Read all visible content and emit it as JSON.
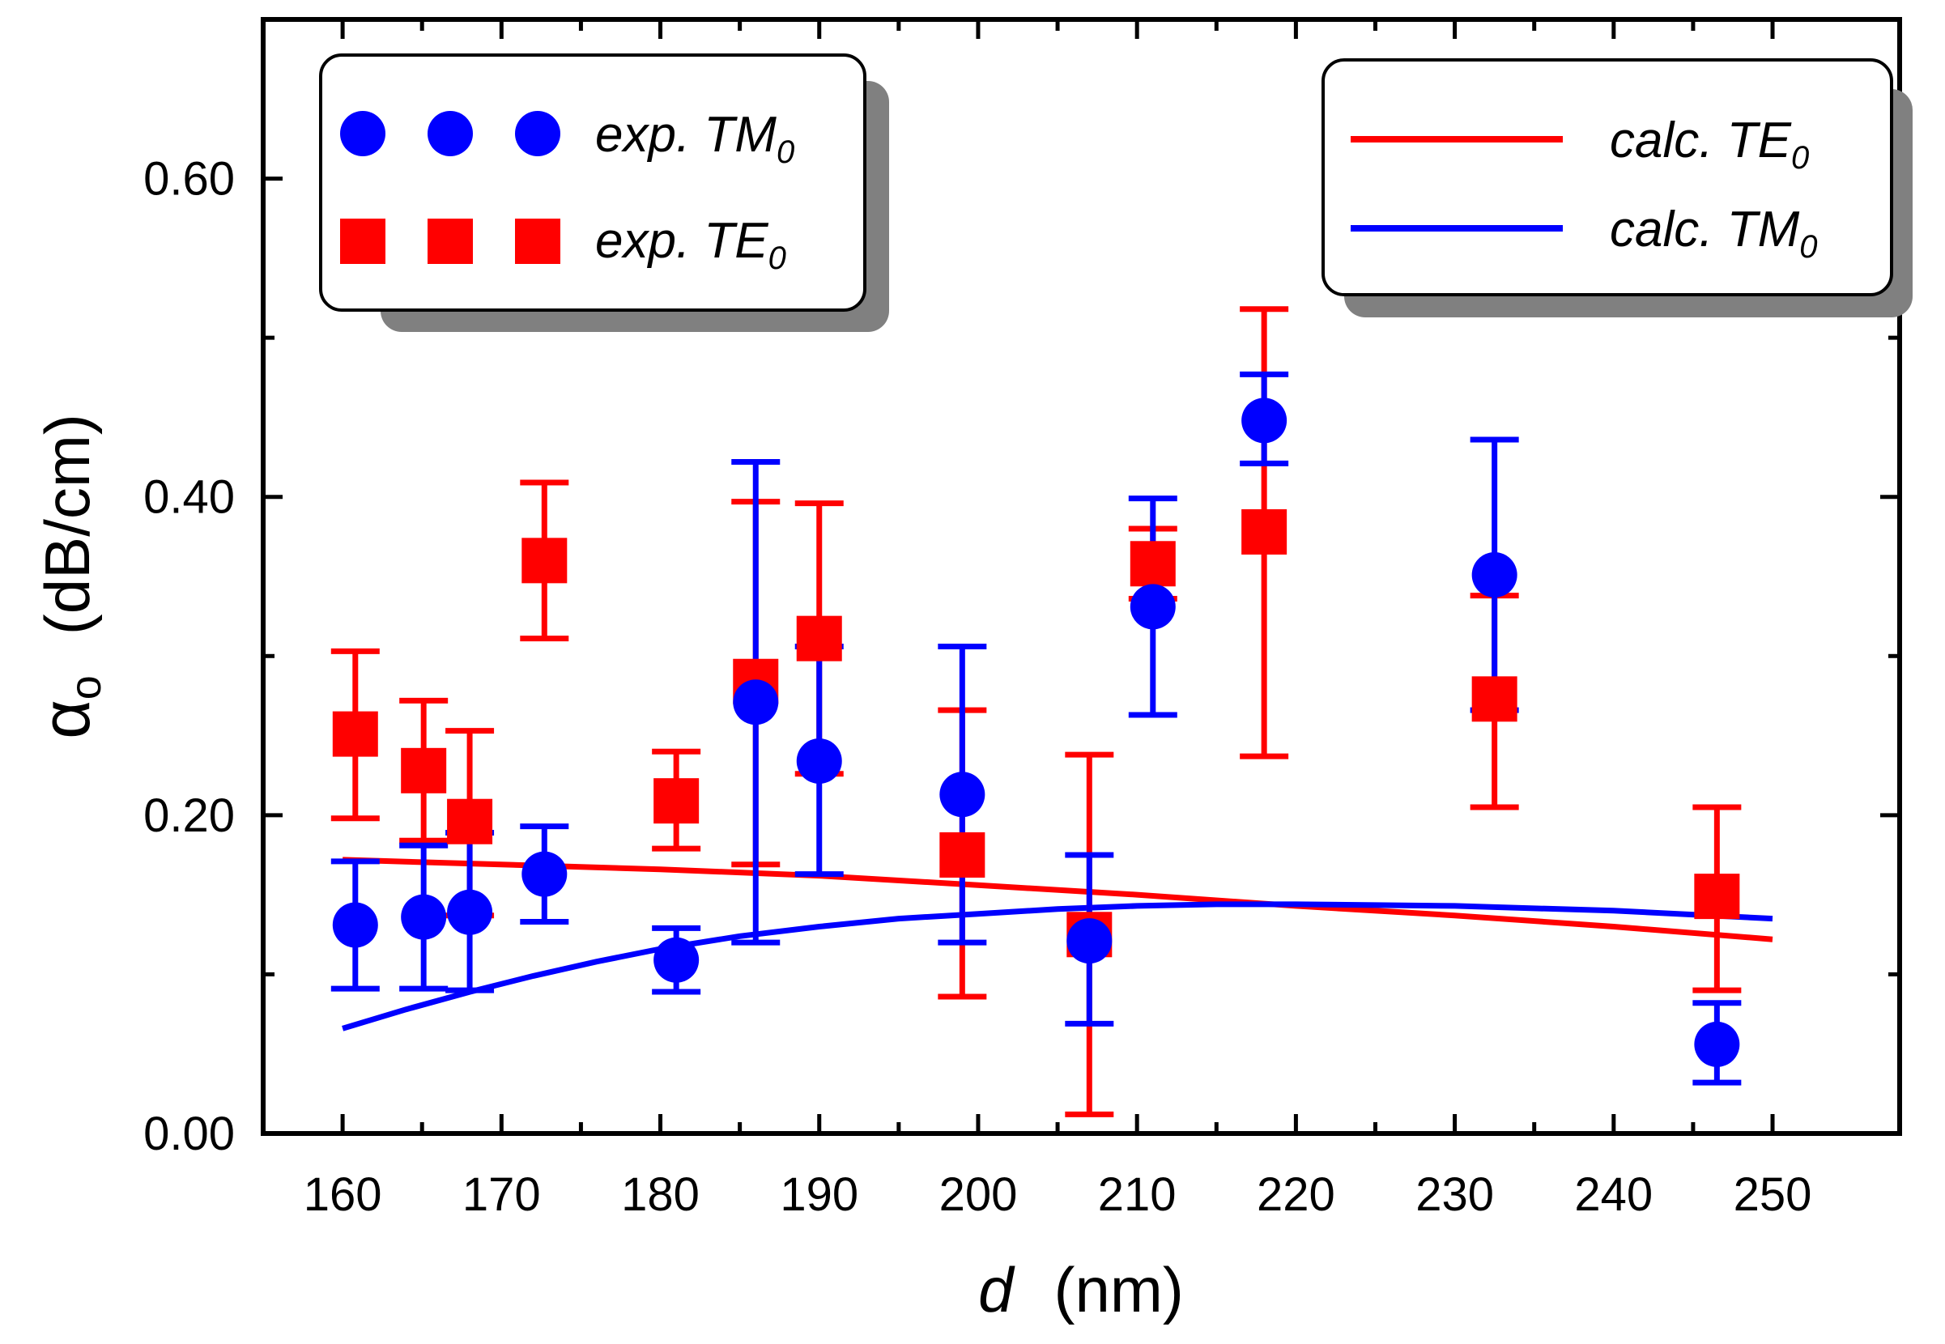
{
  "chart_data": {
    "type": "scatter",
    "title": "",
    "xlabel": "d",
    "xlabel_unit": "(nm)",
    "ylabel_symbol": "α",
    "ylabel_subscript": "o",
    "ylabel_unit": "(dB/cm)",
    "xlim": [
      155,
      258
    ],
    "ylim": [
      0,
      0.7
    ],
    "x_ticks": [
      160,
      170,
      180,
      190,
      200,
      210,
      220,
      230,
      240,
      250
    ],
    "x_tick_labels": [
      "160",
      "170",
      "180",
      "190",
      "200",
      "210",
      "220",
      "230",
      "240",
      "250"
    ],
    "y_ticks": [
      0.0,
      0.2,
      0.4,
      0.6
    ],
    "y_tick_labels": [
      "0.00",
      "0.20",
      "0.40",
      "0.60"
    ],
    "colors": {
      "te": "#ff0000",
      "tm": "#0000ff"
    },
    "legends": {
      "experimental": {
        "position": "top-left",
        "entries": [
          {
            "label": "exp. TM",
            "sub": "0",
            "series": "exp_tm"
          },
          {
            "label": "exp. TE",
            "sub": "0",
            "series": "exp_te"
          }
        ]
      },
      "calculated": {
        "position": "top-right",
        "entries": [
          {
            "label": "calc. TE",
            "sub": "0",
            "series": "calc_te"
          },
          {
            "label": "calc. TM",
            "sub": "0",
            "series": "calc_tm"
          }
        ]
      }
    },
    "series": [
      {
        "name": "exp. TE0",
        "key": "exp_te",
        "kind": "scatter",
        "marker": "square",
        "color": "#ff0000",
        "points": [
          {
            "x": 160.8,
            "y": 0.251,
            "lo": 0.198,
            "hi": 0.303
          },
          {
            "x": 165.1,
            "y": 0.228,
            "lo": 0.184,
            "hi": 0.272
          },
          {
            "x": 168.0,
            "y": 0.196,
            "lo": 0.137,
            "hi": 0.253
          },
          {
            "x": 172.7,
            "y": 0.36,
            "lo": 0.311,
            "hi": 0.409
          },
          {
            "x": 181.0,
            "y": 0.209,
            "lo": 0.179,
            "hi": 0.24
          },
          {
            "x": 186.0,
            "y": 0.284,
            "lo": 0.169,
            "hi": 0.397
          },
          {
            "x": 190.0,
            "y": 0.311,
            "lo": 0.226,
            "hi": 0.396
          },
          {
            "x": 199.0,
            "y": 0.175,
            "lo": 0.086,
            "hi": 0.266
          },
          {
            "x": 207.0,
            "y": 0.125,
            "lo": 0.012,
            "hi": 0.238
          },
          {
            "x": 211.0,
            "y": 0.358,
            "lo": 0.336,
            "hi": 0.38
          },
          {
            "x": 218.0,
            "y": 0.378,
            "lo": 0.237,
            "hi": 0.518
          },
          {
            "x": 232.5,
            "y": 0.273,
            "lo": 0.205,
            "hi": 0.338
          },
          {
            "x": 246.5,
            "y": 0.149,
            "lo": 0.09,
            "hi": 0.205
          }
        ]
      },
      {
        "name": "exp. TM0",
        "key": "exp_tm",
        "kind": "scatter",
        "marker": "circle",
        "color": "#0000ff",
        "points": [
          {
            "x": 160.8,
            "y": 0.131,
            "lo": 0.091,
            "hi": 0.171
          },
          {
            "x": 165.1,
            "y": 0.136,
            "lo": 0.091,
            "hi": 0.181
          },
          {
            "x": 168.0,
            "y": 0.139,
            "lo": 0.09,
            "hi": 0.189
          },
          {
            "x": 172.7,
            "y": 0.163,
            "lo": 0.133,
            "hi": 0.193
          },
          {
            "x": 181.0,
            "y": 0.109,
            "lo": 0.089,
            "hi": 0.129
          },
          {
            "x": 186.0,
            "y": 0.271,
            "lo": 0.12,
            "hi": 0.422
          },
          {
            "x": 190.0,
            "y": 0.234,
            "lo": 0.163,
            "hi": 0.306
          },
          {
            "x": 199.0,
            "y": 0.213,
            "lo": 0.12,
            "hi": 0.306
          },
          {
            "x": 207.0,
            "y": 0.121,
            "lo": 0.069,
            "hi": 0.175
          },
          {
            "x": 211.0,
            "y": 0.331,
            "lo": 0.263,
            "hi": 0.399
          },
          {
            "x": 218.0,
            "y": 0.448,
            "lo": 0.421,
            "hi": 0.477
          },
          {
            "x": 232.5,
            "y": 0.351,
            "lo": 0.266,
            "hi": 0.436
          },
          {
            "x": 246.5,
            "y": 0.056,
            "lo": 0.032,
            "hi": 0.082
          }
        ]
      },
      {
        "name": "calc. TE0",
        "key": "calc_te",
        "kind": "line",
        "color": "#ff0000",
        "x": [
          160,
          170,
          180,
          190,
          200,
          210,
          220,
          230,
          240,
          250
        ],
        "values": [
          0.172,
          0.169,
          0.166,
          0.162,
          0.156,
          0.15,
          0.143,
          0.137,
          0.13,
          0.122
        ]
      },
      {
        "name": "calc. TM0",
        "key": "calc_tm",
        "kind": "line",
        "color": "#0000ff",
        "x": [
          160,
          164,
          168,
          172,
          176,
          180,
          185,
          190,
          195,
          200,
          205,
          210,
          215,
          220,
          230,
          240,
          250
        ],
        "values": [
          0.066,
          0.078,
          0.089,
          0.099,
          0.108,
          0.116,
          0.124,
          0.13,
          0.135,
          0.138,
          0.141,
          0.143,
          0.144,
          0.144,
          0.143,
          0.14,
          0.135
        ]
      }
    ]
  }
}
